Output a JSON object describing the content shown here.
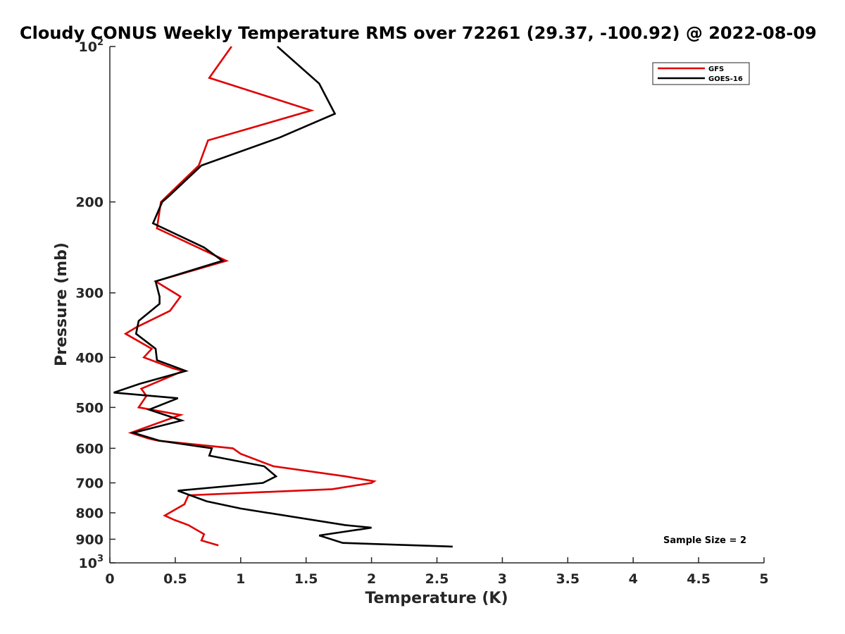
{
  "chart_data": {
    "type": "line",
    "title": "Cloudy CONUS Weekly Temperature RMS over 72261 (29.37, -100.92) @ 2022-08-09",
    "xlabel": "Temperature (K)",
    "ylabel": "Pressure (mb)",
    "xlim": [
      0,
      5
    ],
    "ylim": [
      100,
      1000
    ],
    "y_scale": "log",
    "y_reversed": true,
    "grid": false,
    "x_ticks": [
      "0",
      "0.5",
      "1",
      "1.5",
      "2",
      "2.5",
      "3",
      "3.5",
      "4",
      "4.5",
      "5"
    ],
    "y_ticks": [
      {
        "value": 100,
        "base": "10",
        "exp": "2"
      },
      {
        "value": 200,
        "label": "200"
      },
      {
        "value": 300,
        "label": "300"
      },
      {
        "value": 400,
        "label": "400"
      },
      {
        "value": 500,
        "label": "500"
      },
      {
        "value": 600,
        "label": "600"
      },
      {
        "value": 700,
        "label": "700"
      },
      {
        "value": 800,
        "label": "800"
      },
      {
        "value": 900,
        "label": "900"
      },
      {
        "value": 1000,
        "base": "10",
        "exp": "3"
      }
    ],
    "legend_position": "top-right",
    "series": [
      {
        "name": "GFS",
        "color": "#e00000",
        "points": [
          [
            0.93,
            100
          ],
          [
            0.76,
            115
          ],
          [
            1.54,
            133
          ],
          [
            0.75,
            152
          ],
          [
            0.68,
            170
          ],
          [
            0.39,
            200
          ],
          [
            0.36,
            225
          ],
          [
            0.89,
            260
          ],
          [
            0.35,
            285
          ],
          [
            0.54,
            305
          ],
          [
            0.46,
            325
          ],
          [
            0.2,
            350
          ],
          [
            0.12,
            360
          ],
          [
            0.32,
            385
          ],
          [
            0.26,
            400
          ],
          [
            0.48,
            420
          ],
          [
            0.56,
            425
          ],
          [
            0.24,
            460
          ],
          [
            0.28,
            475
          ],
          [
            0.22,
            500
          ],
          [
            0.54,
            517
          ],
          [
            0.16,
            560
          ],
          [
            0.3,
            575
          ],
          [
            0.37,
            580
          ],
          [
            0.94,
            600
          ],
          [
            1.0,
            615
          ],
          [
            1.25,
            650
          ],
          [
            1.8,
            680
          ],
          [
            2.02,
            695
          ],
          [
            2.0,
            700
          ],
          [
            1.7,
            720
          ],
          [
            0.6,
            740
          ],
          [
            0.57,
            770
          ],
          [
            0.42,
            810
          ],
          [
            0.49,
            825
          ],
          [
            0.6,
            845
          ],
          [
            0.72,
            880
          ],
          [
            0.7,
            905
          ],
          [
            0.83,
            925
          ]
        ]
      },
      {
        "name": "GOES-16",
        "color": "#000000",
        "points": [
          [
            1.28,
            100
          ],
          [
            1.6,
            118
          ],
          [
            1.72,
            135
          ],
          [
            1.3,
            150
          ],
          [
            0.7,
            170
          ],
          [
            0.45,
            195
          ],
          [
            0.4,
            200
          ],
          [
            0.33,
            220
          ],
          [
            0.72,
            245
          ],
          [
            0.86,
            260
          ],
          [
            0.35,
            285
          ],
          [
            0.38,
            305
          ],
          [
            0.38,
            315
          ],
          [
            0.22,
            340
          ],
          [
            0.2,
            360
          ],
          [
            0.35,
            385
          ],
          [
            0.36,
            405
          ],
          [
            0.58,
            425
          ],
          [
            0.23,
            450
          ],
          [
            0.03,
            468
          ],
          [
            0.52,
            480
          ],
          [
            0.3,
            505
          ],
          [
            0.55,
            530
          ],
          [
            0.18,
            560
          ],
          [
            0.38,
            580
          ],
          [
            0.78,
            600
          ],
          [
            0.76,
            620
          ],
          [
            1.18,
            650
          ],
          [
            1.27,
            680
          ],
          [
            1.17,
            700
          ],
          [
            0.52,
            725
          ],
          [
            0.74,
            760
          ],
          [
            1.0,
            785
          ],
          [
            1.8,
            845
          ],
          [
            2.0,
            855
          ],
          [
            1.6,
            885
          ],
          [
            1.78,
            915
          ],
          [
            2.62,
            930
          ]
        ]
      }
    ],
    "annotations": [
      {
        "text": "Sample Size = 2",
        "position": "bottom-right"
      }
    ]
  }
}
